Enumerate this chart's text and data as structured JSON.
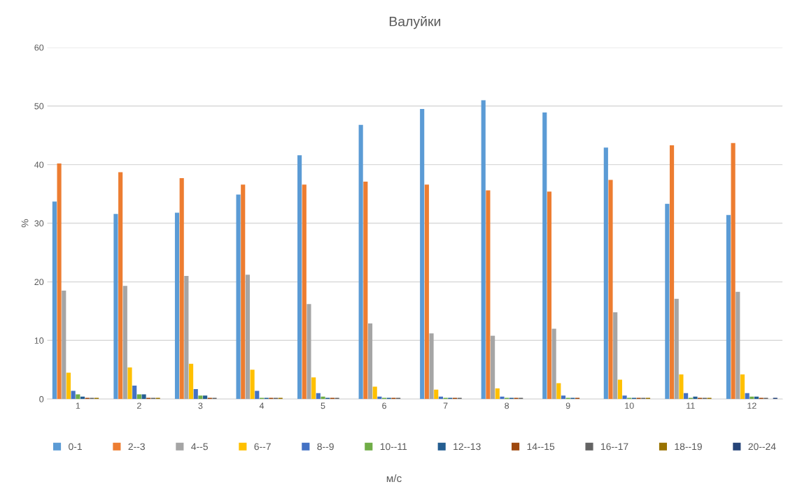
{
  "chart_data": {
    "type": "bar",
    "title": "Валуйки",
    "annotations": [
      "м/с"
    ],
    "ylabel": "%",
    "categories": [
      "1",
      "2",
      "3",
      "4",
      "5",
      "6",
      "7",
      "8",
      "9",
      "10",
      "11",
      "12"
    ],
    "ylim": [
      0,
      60
    ],
    "yticks": [
      0,
      10,
      20,
      30,
      40,
      50,
      60
    ],
    "grid": "y",
    "legend": "bottom",
    "series": [
      {
        "name": "0-1",
        "color": "#5b9bd5",
        "values": [
          33.7,
          31.6,
          31.8,
          34.9,
          41.6,
          46.8,
          49.5,
          51.0,
          48.9,
          42.9,
          33.3,
          31.4
        ]
      },
      {
        "name": "2--3",
        "color": "#ed7d31",
        "values": [
          40.2,
          38.7,
          37.7,
          36.6,
          36.6,
          37.1,
          36.6,
          35.6,
          35.4,
          37.4,
          43.3,
          43.7
        ]
      },
      {
        "name": "4--5",
        "color": "#a5a5a5",
        "values": [
          18.5,
          19.3,
          21.0,
          21.2,
          16.2,
          12.9,
          11.2,
          10.8,
          12.0,
          14.8,
          17.1,
          18.3
        ]
      },
      {
        "name": "6--7",
        "color": "#ffc000",
        "values": [
          4.5,
          5.4,
          6.0,
          5.0,
          3.7,
          2.1,
          1.6,
          1.8,
          2.7,
          3.3,
          4.2,
          4.2
        ]
      },
      {
        "name": "8--9",
        "color": "#4472c4",
        "values": [
          1.4,
          2.3,
          1.7,
          1.4,
          1.0,
          0.4,
          0.4,
          0.4,
          0.6,
          0.6,
          1.0,
          1.0
        ]
      },
      {
        "name": "10--11",
        "color": "#70ad47",
        "values": [
          0.8,
          0.8,
          0.6,
          0.2,
          0.4,
          0.2,
          0.2,
          0.2,
          0.2,
          0.2,
          0.2,
          0.4
        ]
      },
      {
        "name": "12--13",
        "color": "#255e91",
        "values": [
          0.4,
          0.8,
          0.6,
          0.2,
          0.2,
          0.2,
          0.2,
          0.2,
          0.2,
          0.2,
          0.4,
          0.4
        ]
      },
      {
        "name": "14--15",
        "color": "#9e480e",
        "values": [
          0.2,
          0.2,
          0.2,
          0.2,
          0.2,
          0.2,
          0.2,
          0.2,
          0.2,
          0.2,
          0.2,
          0.2
        ]
      },
      {
        "name": "16--17",
        "color": "#636363",
        "values": [
          0.2,
          0.2,
          0.2,
          0.2,
          0.2,
          0.2,
          0.2,
          0.2,
          0,
          0.2,
          0.2,
          0.2
        ]
      },
      {
        "name": "18--19",
        "color": "#997300",
        "values": [
          0.2,
          0.2,
          0,
          0.2,
          0,
          0,
          0,
          0,
          0,
          0.2,
          0.2,
          0
        ]
      },
      {
        "name": "20--24",
        "color": "#264478",
        "values": [
          0,
          0,
          0,
          0,
          0,
          0,
          0,
          0,
          0,
          0,
          0,
          0.2
        ]
      }
    ]
  }
}
